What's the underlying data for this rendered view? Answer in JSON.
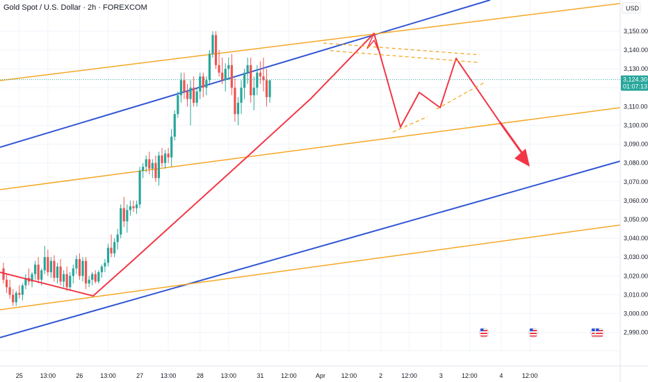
{
  "header": {
    "title": "Gold Spot / U.S. Dollar · 2h · FOREXCOM"
  },
  "price_axis": {
    "currency": "USD"
  },
  "current": {
    "price": "3,124.30",
    "countdown": "01:07:13"
  },
  "colors": {
    "up": "#26a69a",
    "down": "#ef5350",
    "blue": "#2f55d4",
    "orange": "#f5a623",
    "red": "#f23645"
  },
  "chart_data": {
    "type": "candlestick",
    "title": "Gold Spot / U.S. Dollar · 2h · FOREXCOM",
    "ylim": [
      2985,
      3166
    ],
    "y_ticks": [
      "3,150.00",
      "3,140.00",
      "3,130.00",
      "3,120.00",
      "3,110.00",
      "3,100.00",
      "3,090.00",
      "3,080.00",
      "3,070.00",
      "3,060.00",
      "3,050.00",
      "3,040.00",
      "3,030.00",
      "3,020.00",
      "3,010.00",
      "3,000.00",
      "2,990.00"
    ],
    "y_tick_values": [
      3150,
      3140,
      3130,
      3120,
      3110,
      3100,
      3090,
      3080,
      3070,
      3060,
      3050,
      3040,
      3030,
      3020,
      3010,
      3000,
      2990
    ],
    "x_ticks": [
      "12:00",
      "25",
      "13:00",
      "26",
      "13:00",
      "27",
      "13:00",
      "28",
      "13:00",
      "31",
      "12:00",
      "Apr",
      "12:00",
      "2",
      "12:00",
      "3",
      "12:00",
      "4",
      "12:00"
    ],
    "x_tick_index": [
      -9,
      5,
      14,
      24,
      33,
      43,
      52,
      62,
      71,
      81,
      90,
      100,
      109,
      119,
      128,
      138,
      147,
      157,
      166
    ],
    "candles": [
      [
        3024,
        3027,
        3016,
        3018
      ],
      [
        3018,
        3021,
        3011,
        3014
      ],
      [
        3014,
        3018,
        3008,
        3010
      ],
      [
        3010,
        3013,
        3004,
        3006
      ],
      [
        3006,
        3012,
        3004,
        3011
      ],
      [
        3011,
        3015,
        3008,
        3010
      ],
      [
        3010,
        3016,
        3007,
        3015
      ],
      [
        3015,
        3021,
        3013,
        3019
      ],
      [
        3019,
        3024,
        3015,
        3017
      ],
      [
        3017,
        3022,
        3014,
        3021
      ],
      [
        3021,
        3028,
        3018,
        3026
      ],
      [
        3026,
        3030,
        3016,
        3018
      ],
      [
        3018,
        3024,
        3015,
        3023
      ],
      [
        3023,
        3036,
        3021,
        3030
      ],
      [
        3030,
        3034,
        3020,
        3022
      ],
      [
        3022,
        3030,
        3019,
        3028
      ],
      [
        3028,
        3031,
        3017,
        3019
      ],
      [
        3019,
        3027,
        3016,
        3025
      ],
      [
        3025,
        3029,
        3015,
        3017
      ],
      [
        3017,
        3023,
        3014,
        3021
      ],
      [
        3021,
        3025,
        3012,
        3014
      ],
      [
        3014,
        3022,
        3012,
        3020
      ],
      [
        3020,
        3026,
        3016,
        3024
      ],
      [
        3024,
        3031,
        3021,
        3029
      ],
      [
        3029,
        3032,
        3018,
        3020
      ],
      [
        3020,
        3030,
        3017,
        3028
      ],
      [
        3028,
        3030,
        3013,
        3016
      ],
      [
        3016,
        3020,
        3014,
        3018
      ],
      [
        3018,
        3022,
        3015,
        3021
      ],
      [
        3021,
        3023,
        3016,
        3017
      ],
      [
        3017,
        3023,
        3016,
        3022
      ],
      [
        3022,
        3026,
        3019,
        3025
      ],
      [
        3025,
        3029,
        3022,
        3027
      ],
      [
        3027,
        3037,
        3025,
        3035
      ],
      [
        3035,
        3042,
        3030,
        3032
      ],
      [
        3032,
        3040,
        3030,
        3038
      ],
      [
        3038,
        3045,
        3034,
        3042
      ],
      [
        3042,
        3058,
        3040,
        3056
      ],
      [
        3056,
        3062,
        3046,
        3049
      ],
      [
        3049,
        3058,
        3043,
        3055
      ],
      [
        3055,
        3060,
        3052,
        3057
      ],
      [
        3057,
        3060,
        3054,
        3056
      ],
      [
        3056,
        3060,
        3053,
        3058
      ],
      [
        3058,
        3078,
        3056,
        3076
      ],
      [
        3076,
        3080,
        3072,
        3078
      ],
      [
        3078,
        3084,
        3075,
        3082
      ],
      [
        3082,
        3086,
        3074,
        3077
      ],
      [
        3077,
        3082,
        3072,
        3080
      ],
      [
        3080,
        3084,
        3070,
        3072
      ],
      [
        3072,
        3086,
        3068,
        3084
      ],
      [
        3084,
        3088,
        3078,
        3080
      ],
      [
        3080,
        3087,
        3077,
        3085
      ],
      [
        3085,
        3088,
        3080,
        3083
      ],
      [
        3083,
        3098,
        3078,
        3094
      ],
      [
        3094,
        3108,
        3092,
        3106
      ],
      [
        3106,
        3118,
        3104,
        3116
      ],
      [
        3116,
        3128,
        3112,
        3124
      ],
      [
        3124,
        3128,
        3114,
        3118
      ],
      [
        3118,
        3122,
        3110,
        3114
      ],
      [
        3114,
        3124,
        3100,
        3120
      ],
      [
        3120,
        3126,
        3110,
        3112
      ],
      [
        3112,
        3120,
        3110,
        3118
      ],
      [
        3118,
        3128,
        3114,
        3126
      ],
      [
        3126,
        3128,
        3115,
        3120
      ],
      [
        3120,
        3126,
        3116,
        3124
      ],
      [
        3124,
        3140,
        3122,
        3138
      ],
      [
        3138,
        3150,
        3136,
        3148
      ],
      [
        3148,
        3150,
        3130,
        3132
      ],
      [
        3132,
        3140,
        3126,
        3128
      ],
      [
        3128,
        3136,
        3122,
        3124
      ],
      [
        3124,
        3133,
        3118,
        3130
      ],
      [
        3130,
        3136,
        3124,
        3132
      ],
      [
        3132,
        3138,
        3116,
        3120
      ],
      [
        3120,
        3125,
        3102,
        3106
      ],
      [
        3106,
        3115,
        3100,
        3112
      ],
      [
        3112,
        3124,
        3106,
        3120
      ],
      [
        3120,
        3130,
        3114,
        3128
      ],
      [
        3128,
        3136,
        3122,
        3132
      ],
      [
        3132,
        3136,
        3112,
        3116
      ],
      [
        3116,
        3126,
        3108,
        3120
      ],
      [
        3120,
        3132,
        3116,
        3128
      ],
      [
        3128,
        3134,
        3122,
        3126
      ],
      [
        3126,
        3136,
        3118,
        3124
      ],
      [
        3124,
        3130,
        3110,
        3115
      ],
      [
        3115,
        3124,
        3112,
        3124
      ]
    ]
  }
}
